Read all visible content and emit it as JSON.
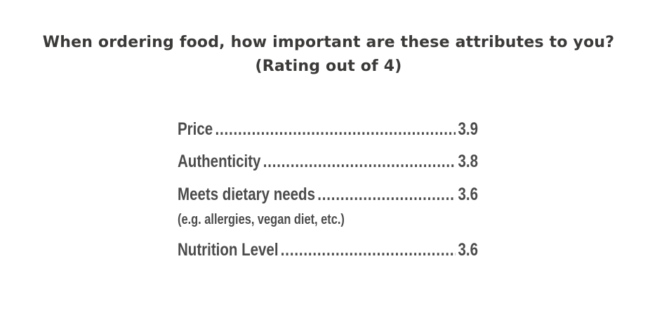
{
  "title": {
    "line1": "When ordering food, how important are these attributes to you?",
    "line2": "(Rating out of 4)"
  },
  "chart_data": {
    "type": "table",
    "title": "When ordering food, how important are these attributes to you? (Rating out of 4)",
    "categories": [
      "Price",
      "Authenticity",
      "Meets dietary needs",
      "Nutrition Level"
    ],
    "values": [
      3.9,
      3.8,
      3.6,
      3.6
    ],
    "notes": {
      "Meets dietary needs": "(e.g. allergies, vegan diet, etc.)"
    },
    "value_labels": [
      "3.9",
      "3.8",
      "3.6",
      "3.6"
    ]
  },
  "items": [
    {
      "label": "Price",
      "value": "3.9"
    },
    {
      "label": "Authenticity",
      "value": "3.8"
    },
    {
      "label": "Meets dietary needs",
      "value": "3.6",
      "note": "(e.g. allergies, vegan diet, etc.)"
    },
    {
      "label": "Nutrition Level",
      "value": "3.6"
    }
  ],
  "colors": {
    "title": "#3b3a39",
    "text": "#4b4b4b",
    "background": "#ffffff"
  }
}
